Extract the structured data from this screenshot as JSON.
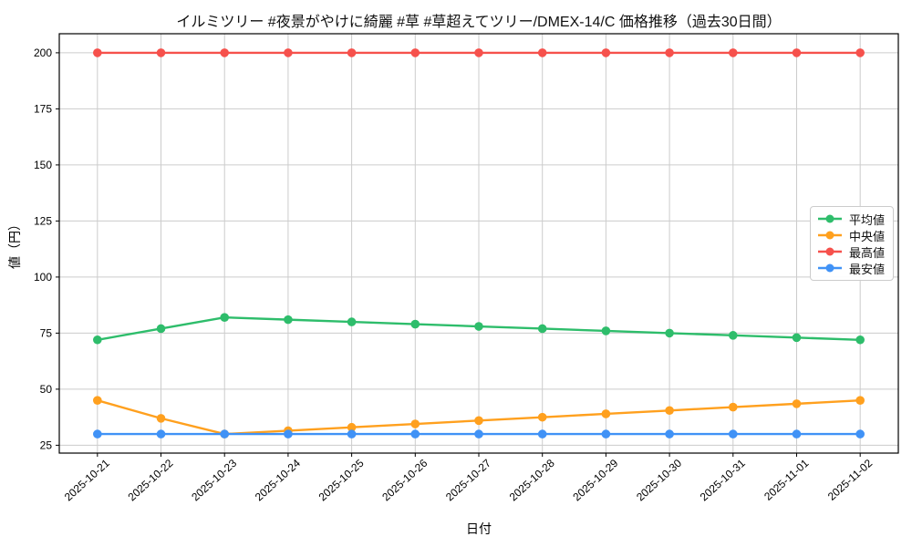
{
  "chart_data": {
    "type": "line",
    "title": "イルミツリー #夜景がやけに綺麗 #草 #草超えてツリー/DMEX-14/C 価格推移（過去30日間）",
    "xlabel": "日付",
    "ylabel": "値（円）",
    "x": [
      "2025-10-21",
      "2025-10-22",
      "2025-10-23",
      "2025-10-24",
      "2025-10-25",
      "2025-10-26",
      "2025-10-27",
      "2025-10-28",
      "2025-10-29",
      "2025-10-30",
      "2025-10-31",
      "2025-11-01",
      "2025-11-02"
    ],
    "y_ticks": [
      25,
      50,
      75,
      100,
      125,
      150,
      175,
      200
    ],
    "ylim": [
      21.5,
      208.5
    ],
    "grid": true,
    "legend_position": "center right",
    "series": [
      {
        "name": "平均値",
        "color": "#2ebd6b",
        "values": [
          72,
          77,
          82,
          81,
          80,
          79,
          78,
          77,
          76,
          75,
          74,
          73,
          72
        ]
      },
      {
        "name": "中央値",
        "color": "#ffa01e",
        "values": [
          45,
          37,
          30,
          31.5,
          33,
          34.5,
          36,
          37.5,
          39,
          40.5,
          42,
          43.5,
          45
        ]
      },
      {
        "name": "最高値",
        "color": "#f6514c",
        "values": [
          200,
          200,
          200,
          200,
          200,
          200,
          200,
          200,
          200,
          200,
          200,
          200,
          200
        ]
      },
      {
        "name": "最安値",
        "color": "#4092f6",
        "values": [
          30,
          30,
          30,
          30,
          30,
          30,
          30,
          30,
          30,
          30,
          30,
          30,
          30
        ]
      }
    ],
    "grid_color": "#cccccc",
    "spine_color": "#000000"
  }
}
